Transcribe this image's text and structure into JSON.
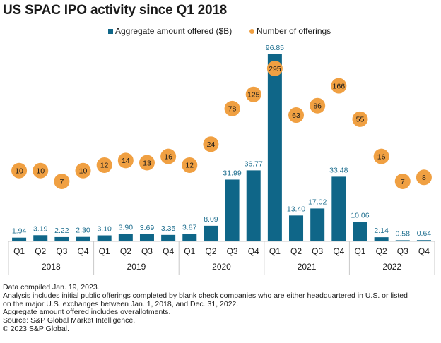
{
  "chart_data": {
    "type": "bar",
    "title": "US SPAC IPO activity since Q1 2018",
    "legend": [
      "Aggregate amount offered ($B)",
      "Number of offerings"
    ],
    "legend_position": "top-center",
    "categories": [
      "Q1",
      "Q2",
      "Q3",
      "Q4",
      "Q1",
      "Q2",
      "Q3",
      "Q4",
      "Q1",
      "Q2",
      "Q3",
      "Q4",
      "Q1",
      "Q2",
      "Q3",
      "Q4",
      "Q1",
      "Q2",
      "Q3",
      "Q4"
    ],
    "years": [
      "2018",
      "2019",
      "2020",
      "2021",
      "2022"
    ],
    "series": [
      {
        "name": "Aggregate amount offered ($B)",
        "kind": "bar",
        "color": "#0f6688",
        "values": [
          1.94,
          3.19,
          2.22,
          2.3,
          3.1,
          3.9,
          3.69,
          3.35,
          3.87,
          8.09,
          31.99,
          36.77,
          96.85,
          13.4,
          17.02,
          33.48,
          10.06,
          2.14,
          0.58,
          0.64
        ],
        "labels": [
          "1.94",
          "3.19",
          "2.22",
          "2.30",
          "3.10",
          "3.90",
          "3.69",
          "3.35",
          "3.87",
          "8.09",
          "31.99",
          "36.77",
          "96.85",
          "13.40",
          "17.02",
          "33.48",
          "10.06",
          "2.14",
          "0.58",
          "0.64"
        ]
      },
      {
        "name": "Number of offerings",
        "kind": "bubble",
        "color": "#f0a042",
        "values": [
          10,
          10,
          7,
          10,
          12,
          14,
          13,
          16,
          12,
          24,
          78,
          125,
          295,
          63,
          86,
          166,
          55,
          16,
          7,
          8
        ]
      }
    ],
    "xlabel": "",
    "ylabel": "",
    "grid": false
  },
  "notes": [
    "Data compiled Jan. 19, 2023.",
    "Analysis includes initial public offerings completed by blank check companies who are either headquartered in U.S. or listed",
    "on the major U.S. exchanges between Jan. 1, 2018, and Dec. 31, 2022.",
    "Aggregate amount offered includes overallotments.",
    "Source: S&P Global Market Intelligence.",
    "© 2023 S&P Global."
  ]
}
